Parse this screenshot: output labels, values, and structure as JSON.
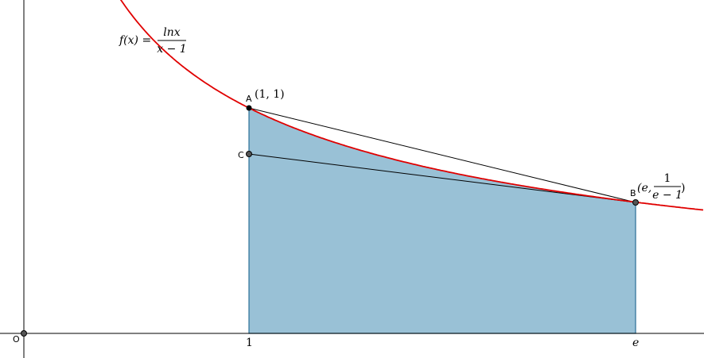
{
  "function_label": {
    "lhs": "f(x) =",
    "numerator": "lnx",
    "denominator": "x − 1"
  },
  "points": [
    {
      "name": "A",
      "label": "(1, 1)"
    },
    {
      "name": "C"
    },
    {
      "name": "B",
      "label": {
        "prefix": "(e,",
        "numerator": "1",
        "denominator": "e − 1",
        "suffix": ")"
      }
    },
    {
      "name": "O"
    }
  ],
  "x_axis_labels": [
    "1",
    "e"
  ]
}
